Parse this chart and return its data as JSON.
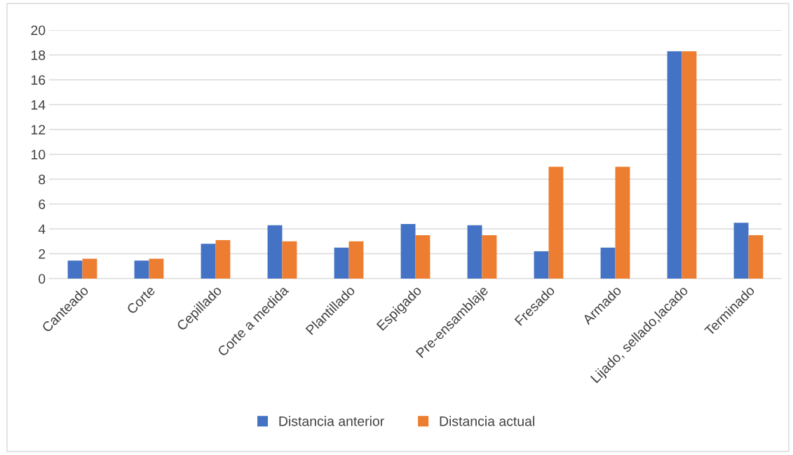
{
  "chart_data": {
    "type": "bar",
    "categories": [
      "Canteado",
      "Corte",
      "Cepillado",
      "Corte a medida",
      "Plantillado",
      "Espigado",
      "Pre-ensamblaje",
      "Fresado",
      "Armado",
      "Lijado, sellado,lacado",
      "Terminado"
    ],
    "series": [
      {
        "name": "Distancia anterior",
        "color": "#4472c4",
        "values": [
          1.45,
          1.45,
          2.8,
          4.3,
          2.5,
          4.4,
          4.3,
          2.2,
          2.5,
          18.3,
          4.5
        ]
      },
      {
        "name": "Distancia actual",
        "color": "#ed7d31",
        "values": [
          1.6,
          1.6,
          3.1,
          3.0,
          3.0,
          3.5,
          3.5,
          9.0,
          9.0,
          18.3,
          3.5
        ]
      }
    ],
    "ylim": [
      0,
      20
    ],
    "yticks": [
      0,
      2,
      4,
      6,
      8,
      10,
      12,
      14,
      16,
      18,
      20
    ],
    "grid": "y",
    "legend": "bottom"
  }
}
